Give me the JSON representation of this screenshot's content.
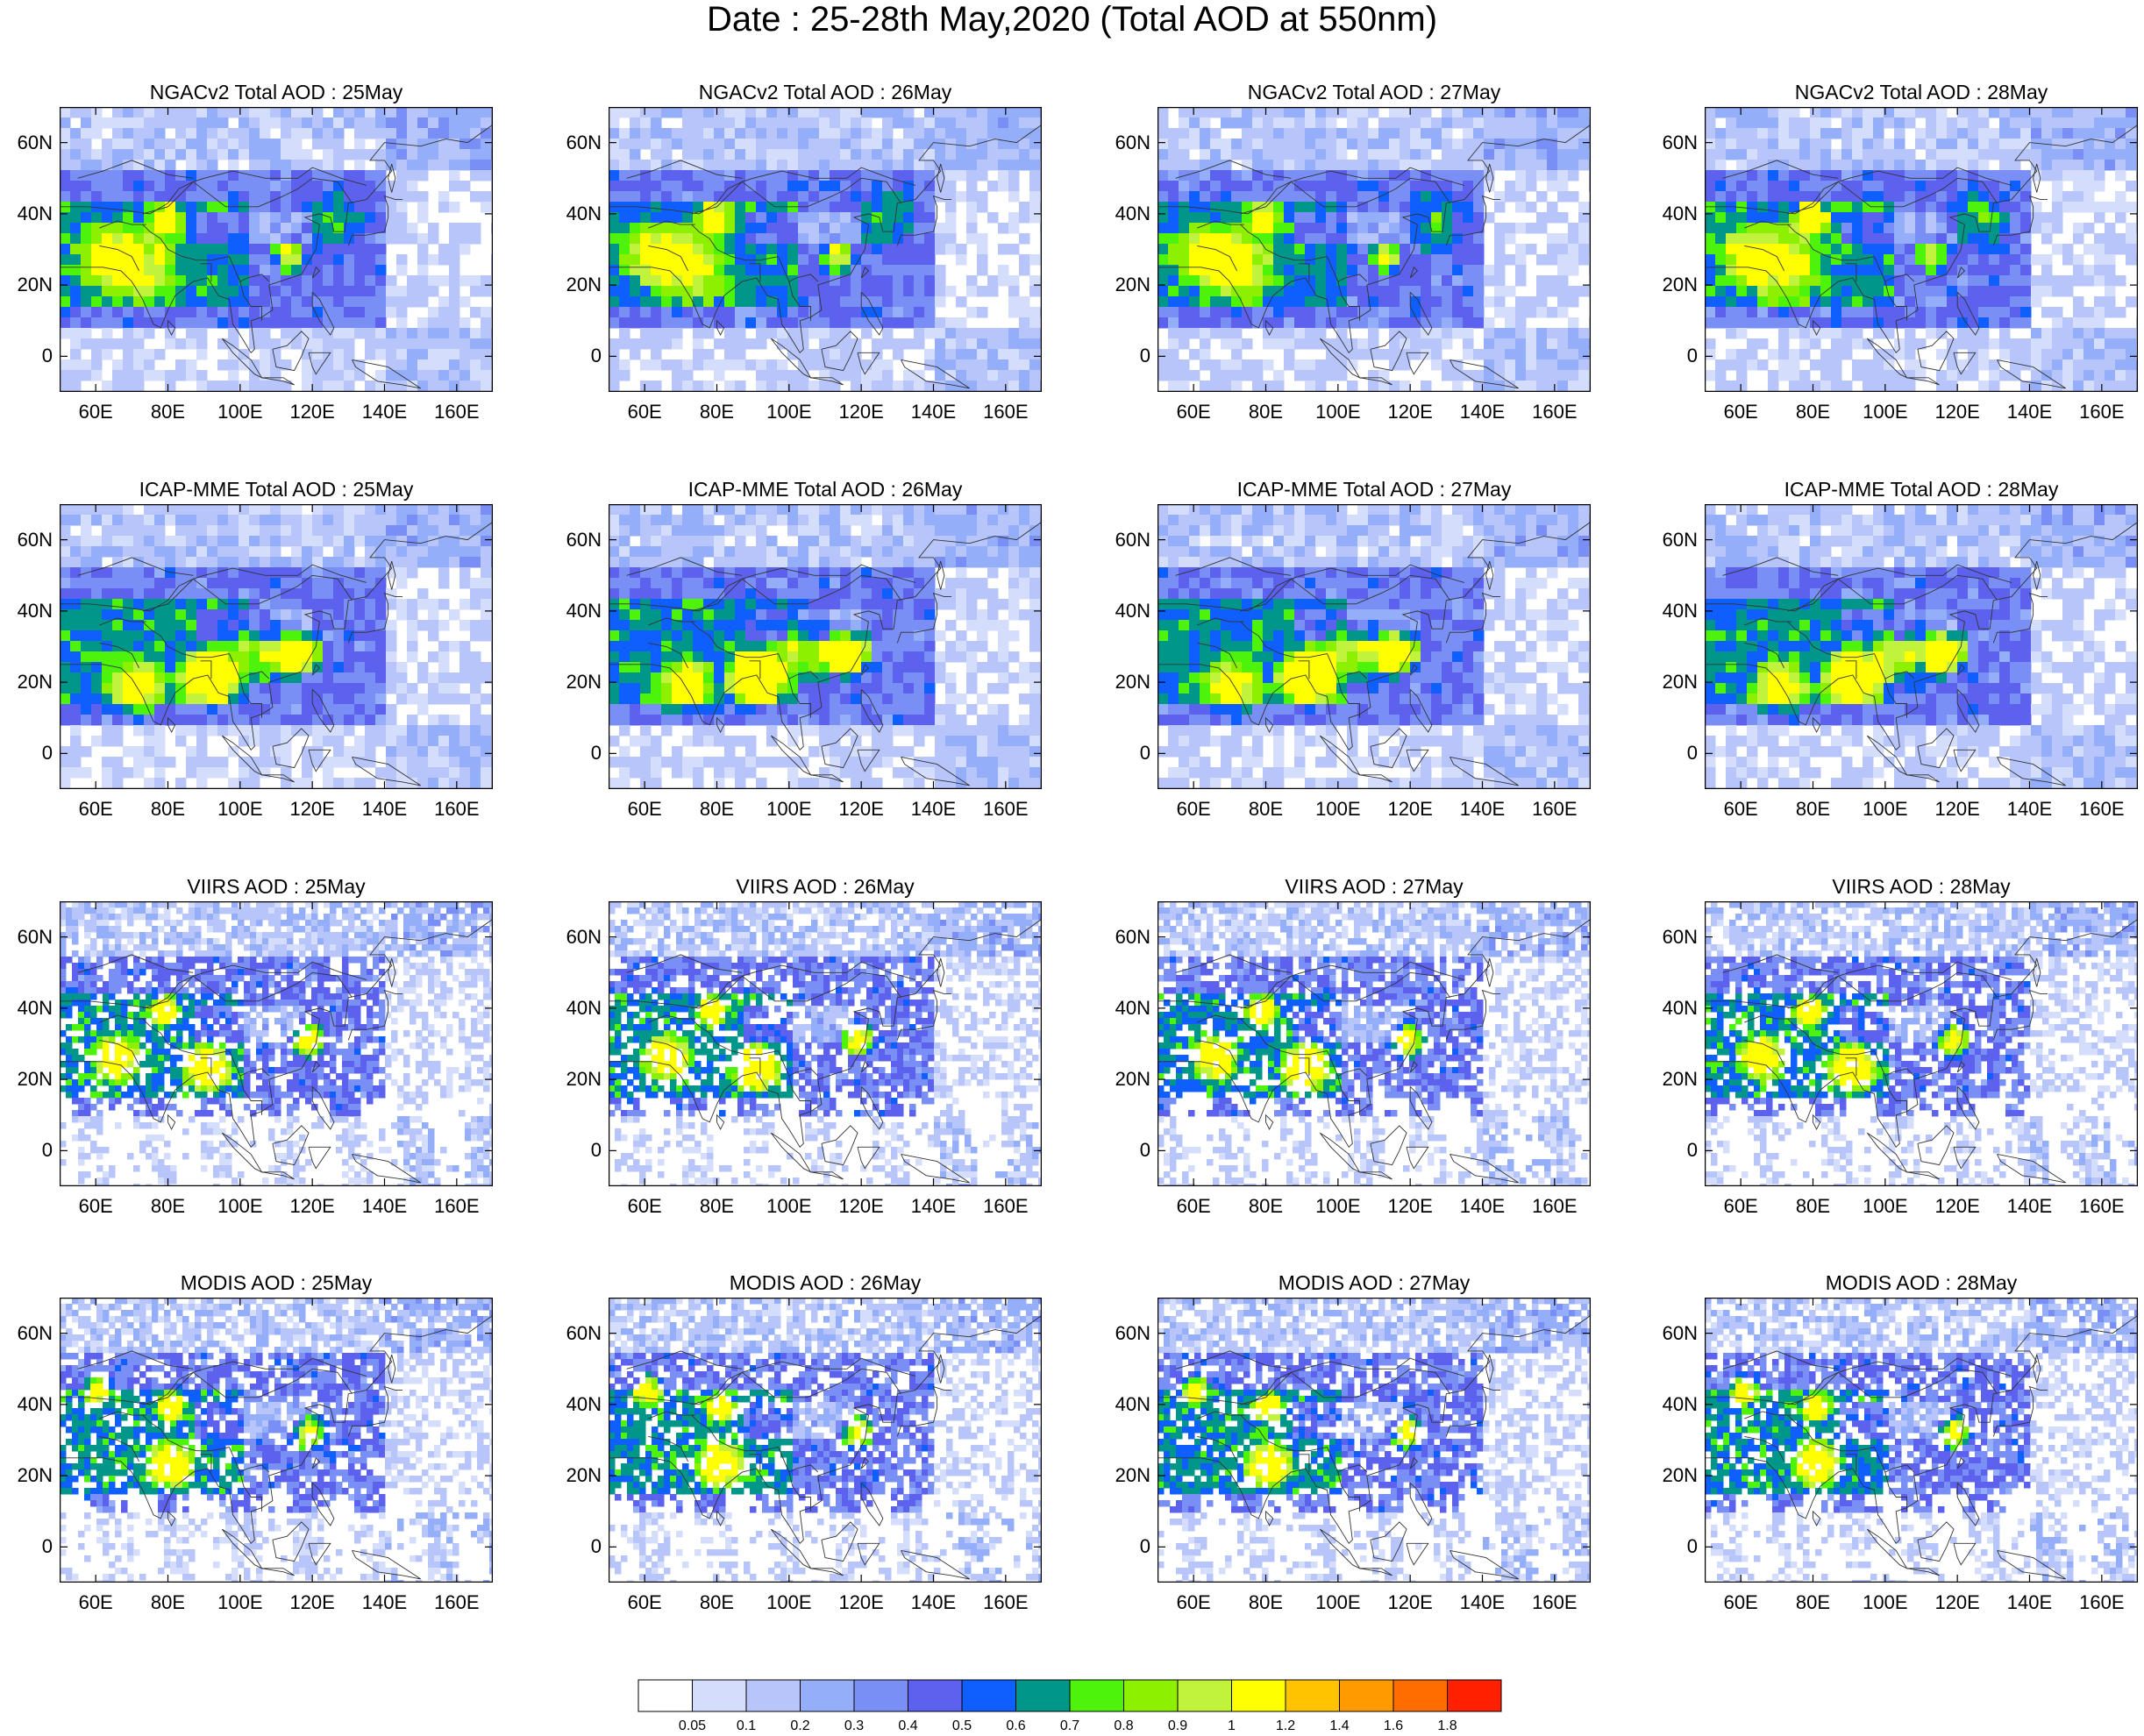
{
  "title": "Date : 25-28th May,2020 (Total AOD at 550nm)",
  "panels": [
    {
      "title": "NGACv2 Total AOD : 25May"
    },
    {
      "title": "NGACv2 Total AOD : 26May"
    },
    {
      "title": "NGACv2 Total AOD : 27May"
    },
    {
      "title": "NGACv2 Total AOD : 28May"
    },
    {
      "title": "ICAP-MME Total AOD : 25May"
    },
    {
      "title": "ICAP-MME Total AOD : 26May"
    },
    {
      "title": "ICAP-MME Total AOD : 27May"
    },
    {
      "title": "ICAP-MME Total AOD : 28May"
    },
    {
      "title": "VIIRS AOD : 25May"
    },
    {
      "title": "VIIRS AOD : 26May"
    },
    {
      "title": "VIIRS AOD : 27May"
    },
    {
      "title": "VIIRS AOD : 28May"
    },
    {
      "title": "MODIS AOD : 25May"
    },
    {
      "title": "MODIS AOD : 26May"
    },
    {
      "title": "MODIS AOD : 27May"
    },
    {
      "title": "MODIS AOD : 28May"
    }
  ],
  "map": {
    "lon_range": [
      50,
      170
    ],
    "lat_range": [
      -10,
      70
    ],
    "lon_ticks": [
      "60E",
      "80E",
      "100E",
      "120E",
      "140E",
      "160E"
    ],
    "lon_tick_values": [
      60,
      80,
      100,
      120,
      140,
      160
    ],
    "lat_ticks": [
      "60N",
      "40N",
      "20N",
      "0"
    ],
    "lat_tick_values": [
      60,
      40,
      20,
      0
    ]
  },
  "colorbar": {
    "labels": [
      "0.05",
      "0.1",
      "0.2",
      "0.3",
      "0.4",
      "0.5",
      "0.6",
      "0.7",
      "0.8",
      "0.9",
      "1",
      "1.2",
      "1.4",
      "1.6",
      "1.8"
    ],
    "colors": [
      "#ffffff",
      "#d4ddfb",
      "#b7c5fa",
      "#95aefa",
      "#7a8ff6",
      "#5c62ee",
      "#0f5fff",
      "#00968a",
      "#4ef30c",
      "#8cf000",
      "#c1f23c",
      "#ffff00",
      "#ffc300",
      "#ff9a00",
      "#ff6d00",
      "#ff2000"
    ]
  }
}
